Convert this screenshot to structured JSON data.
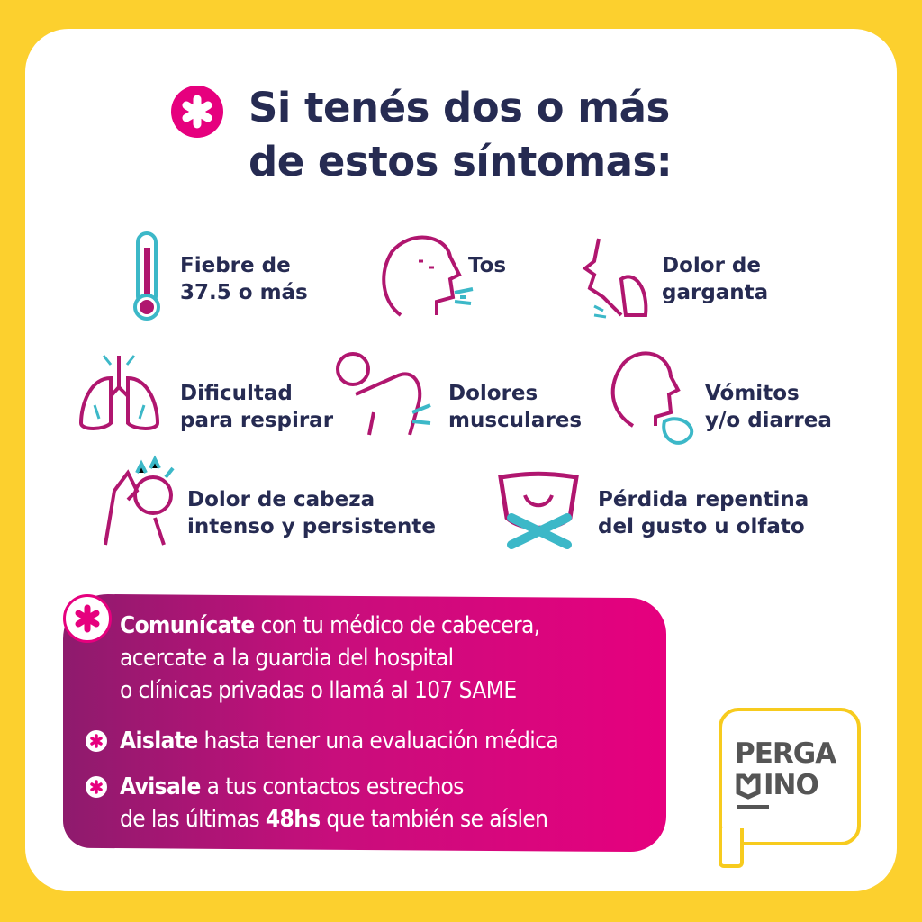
{
  "title": {
    "line1": "Si tenés dos o más",
    "line2": "de estos síntomas:"
  },
  "symptoms": [
    {
      "icon": "thermometer-icon",
      "line1": "Fiebre de",
      "line2": "37.5 o más"
    },
    {
      "icon": "cough-icon",
      "line1": "Tos",
      "line2": ""
    },
    {
      "icon": "sore-throat-icon",
      "line1": "Dolor de",
      "line2": "garganta"
    },
    {
      "icon": "lungs-icon",
      "line1": "Dificultad",
      "line2": "para respirar"
    },
    {
      "icon": "back-pain-icon",
      "line1": "Dolores",
      "line2": "musculares"
    },
    {
      "icon": "vomit-icon",
      "line1": "Vómitos",
      "line2": "y/o diarrea"
    },
    {
      "icon": "headache-icon",
      "line1": "Dolor de cabeza",
      "line2": "intenso y persistente"
    },
    {
      "icon": "no-taste-icon",
      "line1": "Pérdida repentina",
      "line2": "del gusto u olfato"
    }
  ],
  "actions": [
    {
      "bold": "Comunícate",
      "text": " con tu médico de cabecera,",
      "line2": "acercate a la guardia del hospital",
      "line3": "o clínicas privadas o llamá al 107 SAME"
    },
    {
      "bold": "Aislate",
      "text": " hasta tener una evaluación médica"
    },
    {
      "bold": "Avisale",
      "text": " a tus contactos estrechos",
      "line2a": "de las últimas ",
      "line2b": "48hs",
      "line2c": " que también se aíslen"
    }
  ],
  "logo": {
    "line1": "PERGA",
    "line2": "INO"
  },
  "colors": {
    "background": "#fcd02e",
    "title": "#262b52",
    "magenta": "#e6007e",
    "purple": "#8e1b6d",
    "teal": "#3cb8c8"
  }
}
